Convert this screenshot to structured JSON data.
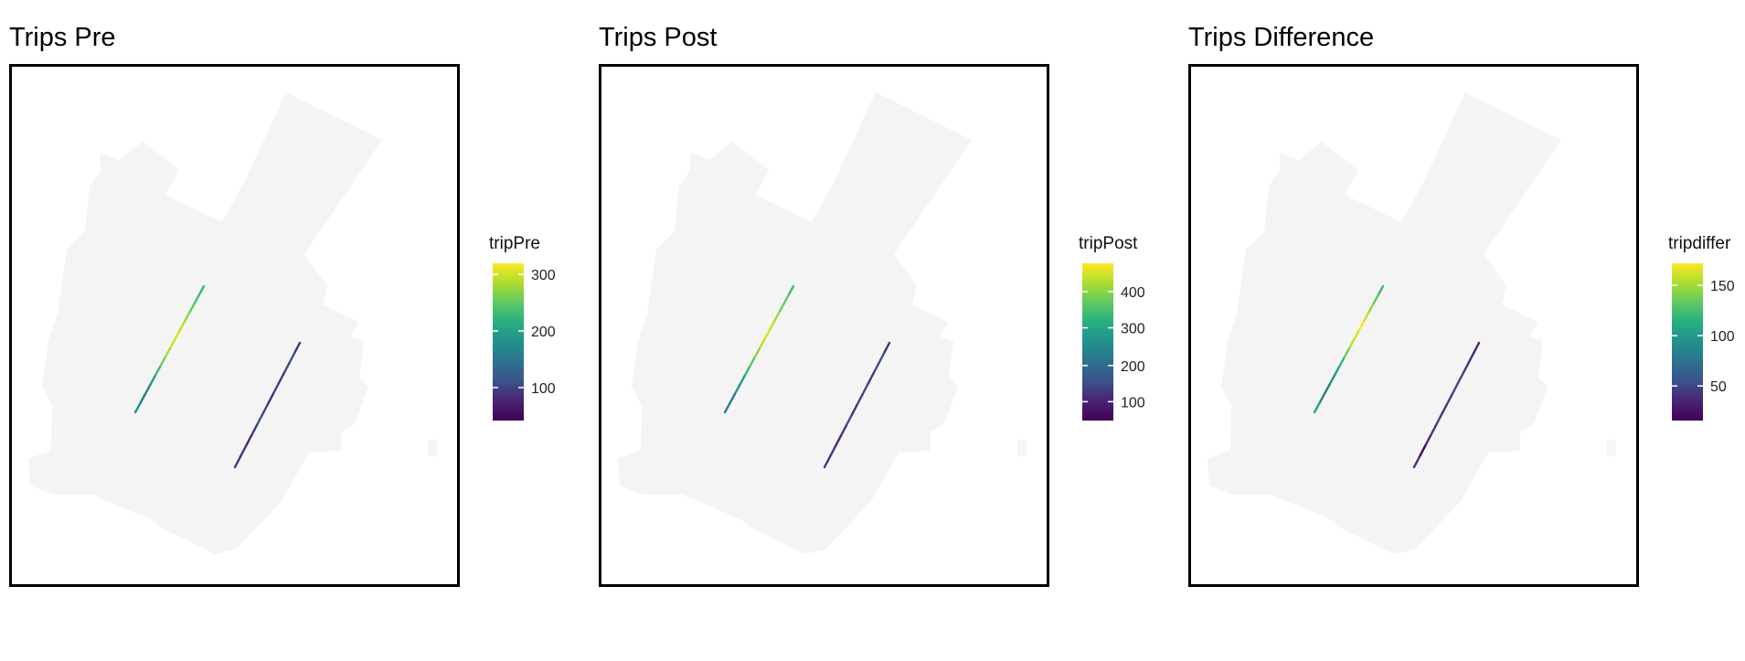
{
  "panels": [
    {
      "title": "Trips Pre",
      "legend": {
        "title": "tripPre",
        "ticks": [
          {
            "value": 100,
            "label": "100",
            "frac": 0.21
          },
          {
            "value": 200,
            "label": "200",
            "frac": 0.57
          },
          {
            "value": 300,
            "label": "300",
            "frac": 0.93
          }
        ]
      },
      "line_a_colors": [
        "#35b779",
        "#3fbc73",
        "#5ec962",
        "#90d743",
        "#b5de2b",
        "#d8e219",
        "#c8e020",
        "#a2da37",
        "#6ece58",
        "#3fbc73",
        "#1f9e89",
        "#26828e",
        "#2a788e",
        "#21918c"
      ],
      "line_b_colors": [
        "#472d7b",
        "#3b528b",
        "#414487",
        "#46337f",
        "#3e4989",
        "#472d7b",
        "#433e85",
        "#3b528b",
        "#46337f",
        "#482374",
        "#443983",
        "#46337f"
      ]
    },
    {
      "title": "Trips Post",
      "legend": {
        "title": "tripPost",
        "ticks": [
          {
            "value": 100,
            "label": "100",
            "frac": 0.12
          },
          {
            "value": 200,
            "label": "200",
            "frac": 0.35
          },
          {
            "value": 300,
            "label": "300",
            "frac": 0.59
          },
          {
            "value": 400,
            "label": "400",
            "frac": 0.82
          }
        ]
      },
      "line_a_colors": [
        "#3fbc73",
        "#5ec962",
        "#6ece58",
        "#a2da37",
        "#c8e020",
        "#d8e219",
        "#b5de2b",
        "#90d743",
        "#5ec962",
        "#35b779",
        "#1f9e89",
        "#21918c",
        "#2a788e",
        "#26828e"
      ],
      "line_b_colors": [
        "#472d7b",
        "#3b528b",
        "#414487",
        "#46337f",
        "#3e4989",
        "#433e85",
        "#472d7b",
        "#3b528b",
        "#46337f",
        "#482374",
        "#443983",
        "#46337f"
      ]
    },
    {
      "title": "Trips Difference",
      "legend": {
        "title": "tripdiffer",
        "ticks": [
          {
            "value": 50,
            "label": "50",
            "frac": 0.22
          },
          {
            "value": 100,
            "label": "100",
            "frac": 0.54
          },
          {
            "value": 150,
            "label": "150",
            "frac": 0.86
          }
        ]
      },
      "line_a_colors": [
        "#35b779",
        "#5ec962",
        "#90d743",
        "#c8e020",
        "#fde725",
        "#d8e219",
        "#b5de2b",
        "#6ece58",
        "#35b779",
        "#1f9e89",
        "#21918c",
        "#2a788e",
        "#26828e",
        "#22a884"
      ],
      "line_b_colors": [
        "#482374",
        "#472d7b",
        "#46337f",
        "#414487",
        "#3e4989",
        "#443983",
        "#472d7b",
        "#433e85",
        "#46337f",
        "#482374",
        "#440154",
        "#46337f"
      ]
    }
  ]
}
